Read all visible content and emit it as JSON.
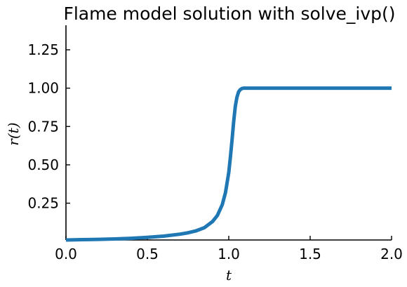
{
  "chart_data": {
    "type": "line",
    "title": "Flame model solution with solve_ivp()",
    "xlabel": "t",
    "ylabel": "r(t)",
    "xlim": [
      0,
      2
    ],
    "ylim": [
      0.01,
      1.41
    ],
    "xticks": [
      "0.0",
      "0.5",
      "1.0",
      "1.5",
      "2.0"
    ],
    "xtick_values": [
      0,
      0.5,
      1.0,
      1.5,
      2.0
    ],
    "yticks": [
      "0.25",
      "0.50",
      "0.75",
      "1.00",
      "1.25"
    ],
    "ytick_values": [
      0.25,
      0.5,
      0.75,
      1.0,
      1.25
    ],
    "grid": false,
    "series": [
      {
        "color": "#1f77b4",
        "x": [
          0.0,
          0.1,
          0.2,
          0.3,
          0.4,
          0.5,
          0.6,
          0.7,
          0.75,
          0.8,
          0.85,
          0.9,
          0.93,
          0.96,
          0.98,
          1.0,
          1.01,
          1.02,
          1.03,
          1.04,
          1.05,
          1.06,
          1.07,
          1.08,
          1.09,
          1.1,
          1.2,
          1.4,
          1.6,
          1.8,
          2.0
        ],
        "y": [
          0.01,
          0.012,
          0.014,
          0.017,
          0.021,
          0.027,
          0.035,
          0.048,
          0.057,
          0.07,
          0.09,
          0.13,
          0.17,
          0.24,
          0.32,
          0.45,
          0.55,
          0.66,
          0.78,
          0.88,
          0.94,
          0.975,
          0.99,
          0.997,
          1.0,
          1.0,
          1.0,
          1.0,
          1.0,
          1.0,
          1.0
        ]
      }
    ]
  }
}
